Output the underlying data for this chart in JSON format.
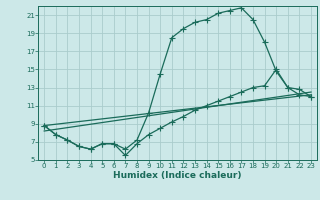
{
  "title": "",
  "xlabel": "Humidex (Indice chaleur)",
  "bg_color": "#cce8e8",
  "grid_color": "#aacccc",
  "line_color": "#1a6b5a",
  "xlim": [
    -0.5,
    23.5
  ],
  "ylim": [
    5,
    22
  ],
  "xticks": [
    0,
    1,
    2,
    3,
    4,
    5,
    6,
    7,
    8,
    9,
    10,
    11,
    12,
    13,
    14,
    15,
    16,
    17,
    18,
    19,
    20,
    21,
    22,
    23
  ],
  "yticks": [
    5,
    7,
    9,
    11,
    13,
    15,
    17,
    19,
    21
  ],
  "line1_x": [
    0,
    1,
    2,
    3,
    4,
    5,
    6,
    7,
    8,
    9,
    10,
    11,
    12,
    13,
    14,
    15,
    16,
    17,
    18,
    19,
    20,
    21,
    22,
    23
  ],
  "line1_y": [
    8.8,
    7.8,
    7.2,
    6.5,
    6.2,
    6.8,
    6.8,
    6.2,
    7.2,
    10.2,
    14.5,
    18.5,
    19.5,
    20.2,
    20.5,
    21.2,
    21.5,
    21.8,
    20.5,
    18.0,
    14.8,
    13.0,
    12.8,
    12.0
  ],
  "line2_x": [
    0,
    1,
    2,
    3,
    4,
    5,
    6,
    7,
    8,
    9,
    10,
    11,
    12,
    13,
    14,
    15,
    16,
    17,
    18,
    19,
    20,
    21,
    22,
    23
  ],
  "line2_y": [
    8.8,
    7.8,
    7.2,
    6.5,
    6.2,
    6.8,
    6.8,
    5.5,
    6.8,
    7.8,
    8.5,
    9.2,
    9.8,
    10.5,
    11.0,
    11.5,
    12.0,
    12.5,
    13.0,
    13.2,
    15.0,
    13.0,
    12.2,
    12.0
  ],
  "line3_x": [
    0,
    23
  ],
  "line3_y": [
    8.8,
    12.2
  ],
  "line4_x": [
    0,
    23
  ],
  "line4_y": [
    8.2,
    12.5
  ],
  "marker": "+",
  "markersize": 4,
  "linewidth": 0.9
}
